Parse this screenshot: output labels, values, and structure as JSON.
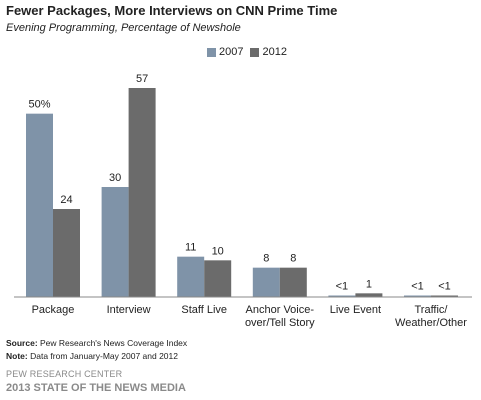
{
  "header": {
    "title": "Fewer Packages, More Interviews on CNN Prime Time",
    "subtitle": "Evening Programming, Percentage of Newshole"
  },
  "footer": {
    "source_label": "Source:",
    "source_text": " Pew Research's News Coverage Index",
    "note_label": "Note:",
    "note_text": " Data from January-May 2007 and 2012",
    "org": "PEW RESEARCH CENTER",
    "report": "2013 STATE OF THE NEWS MEDIA"
  },
  "colors": {
    "series_2007": "#7f93a8",
    "series_2012": "#6b6b6b",
    "axis": "#888888"
  },
  "chart_data": {
    "type": "bar",
    "title": "Fewer Packages, More Interviews on CNN Prime Time",
    "subtitle": "Evening Programming, Percentage of Newshole",
    "categories": [
      [
        "Package"
      ],
      [
        "Interview"
      ],
      [
        "Staff Live"
      ],
      [
        "Anchor Voice-",
        "over/Tell Story"
      ],
      [
        "Live Event"
      ],
      [
        "Traffic/",
        "Weather/Other"
      ]
    ],
    "series": [
      {
        "name": "2007",
        "values": [
          50,
          30,
          11,
          8,
          0.4,
          0.4
        ],
        "labels": [
          "50%",
          "30",
          "11",
          "8",
          "<1",
          "<1"
        ]
      },
      {
        "name": "2012",
        "values": [
          24,
          57,
          10,
          8,
          1,
          0.4
        ],
        "labels": [
          "24",
          "57",
          "10",
          "8",
          "1",
          "<1"
        ]
      }
    ],
    "ylim": [
      0,
      60
    ],
    "grid": false,
    "legend": "top-center"
  }
}
